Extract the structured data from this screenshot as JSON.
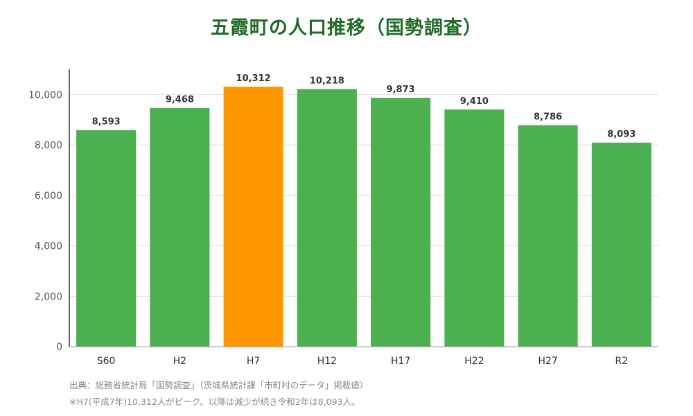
{
  "title": "五霞町の人口推移（国勢調査）",
  "chart_data": {
    "type": "bar",
    "title": "五霞町の人口推移（国勢調査）",
    "categories": [
      "S60",
      "H2",
      "H7",
      "H12",
      "H17",
      "H22",
      "H27",
      "R2"
    ],
    "values": [
      8593,
      9468,
      10312,
      10218,
      9873,
      9410,
      8786,
      8093
    ],
    "value_labels": [
      "8,593",
      "9,468",
      "10,312",
      "10,218",
      "9,873",
      "9,410",
      "8,786",
      "8,093"
    ],
    "ylim": [
      0,
      11000
    ],
    "yticks": [
      0,
      2000,
      4000,
      6000,
      8000,
      10000
    ],
    "ytick_labels": [
      "0",
      "2,000",
      "4,000",
      "6,000",
      "8,000",
      "10,000"
    ],
    "grid": true,
    "bar_color": "#4caf50",
    "highlight_index": 2,
    "highlight_color": "#ff9800"
  },
  "notes": {
    "source": "出典：総務省統計局「国勢調査」（茨城県統計課「市町村のデータ」掲載値）",
    "peak": "※H7(平成7年)10,312人がピーク。以降は減少が続き令和2年は8,093人。"
  }
}
